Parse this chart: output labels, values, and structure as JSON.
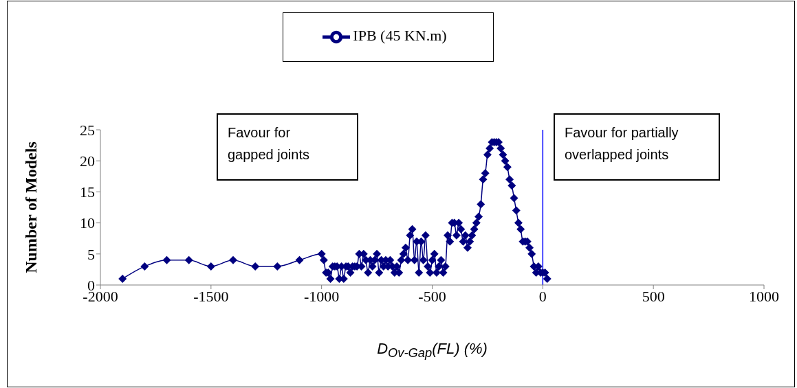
{
  "chart_data": {
    "type": "line",
    "xlabel": "D$_{Ov-Gap}$(FL) (%)",
    "ylabel": "Number of Models",
    "x": [
      -1900,
      -1800,
      -1700,
      -1600,
      -1500,
      -1400,
      -1300,
      -1200,
      -1100,
      -1000,
      -990,
      -980,
      -970,
      -960,
      -950,
      -940,
      -930,
      -920,
      -910,
      -900,
      -890,
      -880,
      -870,
      -860,
      -850,
      -840,
      -830,
      -820,
      -810,
      -800,
      -790,
      -780,
      -770,
      -760,
      -750,
      -740,
      -730,
      -720,
      -710,
      -700,
      -690,
      -680,
      -670,
      -660,
      -650,
      -640,
      -630,
      -620,
      -610,
      -600,
      -590,
      -580,
      -570,
      -560,
      -550,
      -540,
      -530,
      -520,
      -510,
      -500,
      -490,
      -480,
      -470,
      -460,
      -450,
      -440,
      -430,
      -420,
      -410,
      -400,
      -390,
      -380,
      -370,
      -360,
      -350,
      -340,
      -330,
      -320,
      -310,
      -300,
      -290,
      -280,
      -270,
      -260,
      -250,
      -240,
      -230,
      -220,
      -210,
      -200,
      -190,
      -180,
      -170,
      -160,
      -150,
      -140,
      -130,
      -120,
      -110,
      -100,
      -90,
      -80,
      -70,
      -60,
      -50,
      -40,
      -30,
      -20,
      -10,
      0,
      10,
      20
    ],
    "series": [
      {
        "name": "IPB (45 KN.m)",
        "color": "#000080",
        "values": [
          1,
          3,
          4,
          4,
          3,
          4,
          3,
          3,
          4,
          5,
          4,
          2,
          2,
          1,
          3,
          3,
          3,
          1,
          3,
          1,
          3,
          3,
          2,
          3,
          3,
          3,
          5,
          3,
          5,
          4,
          2,
          4,
          3,
          4,
          5,
          2,
          4,
          3,
          4,
          3,
          4,
          3,
          2,
          3,
          2,
          4,
          5,
          6,
          4,
          8,
          9,
          4,
          7,
          2,
          7,
          4,
          8,
          3,
          2,
          4,
          5,
          2,
          3,
          4,
          2,
          3,
          8,
          7,
          10,
          10,
          8,
          10,
          9,
          7,
          8,
          6,
          7,
          8,
          9,
          10,
          11,
          13,
          17,
          18,
          21,
          22,
          23,
          23,
          23,
          23,
          22,
          21,
          20,
          19,
          17,
          16,
          14,
          12,
          10,
          9,
          7,
          7,
          7,
          6,
          5,
          3,
          2,
          3,
          2,
          2,
          2,
          1
        ]
      }
    ],
    "xlim": [
      -2000,
      1000
    ],
    "xticks": [
      -2000,
      -1500,
      -1000,
      -500,
      0,
      500,
      1000
    ],
    "ylim": [
      0,
      25
    ],
    "yticks": [
      0,
      5,
      10,
      15,
      20,
      25
    ],
    "ref_lines": [
      {
        "axis": "x",
        "value": 0,
        "color": "#0000ff"
      }
    ],
    "annotations": [
      "Favour for gapped joints",
      "Favour for partially overlapped joints"
    ],
    "legend": "top",
    "marker": "diamond",
    "line_style": "solid",
    "grid": false
  }
}
